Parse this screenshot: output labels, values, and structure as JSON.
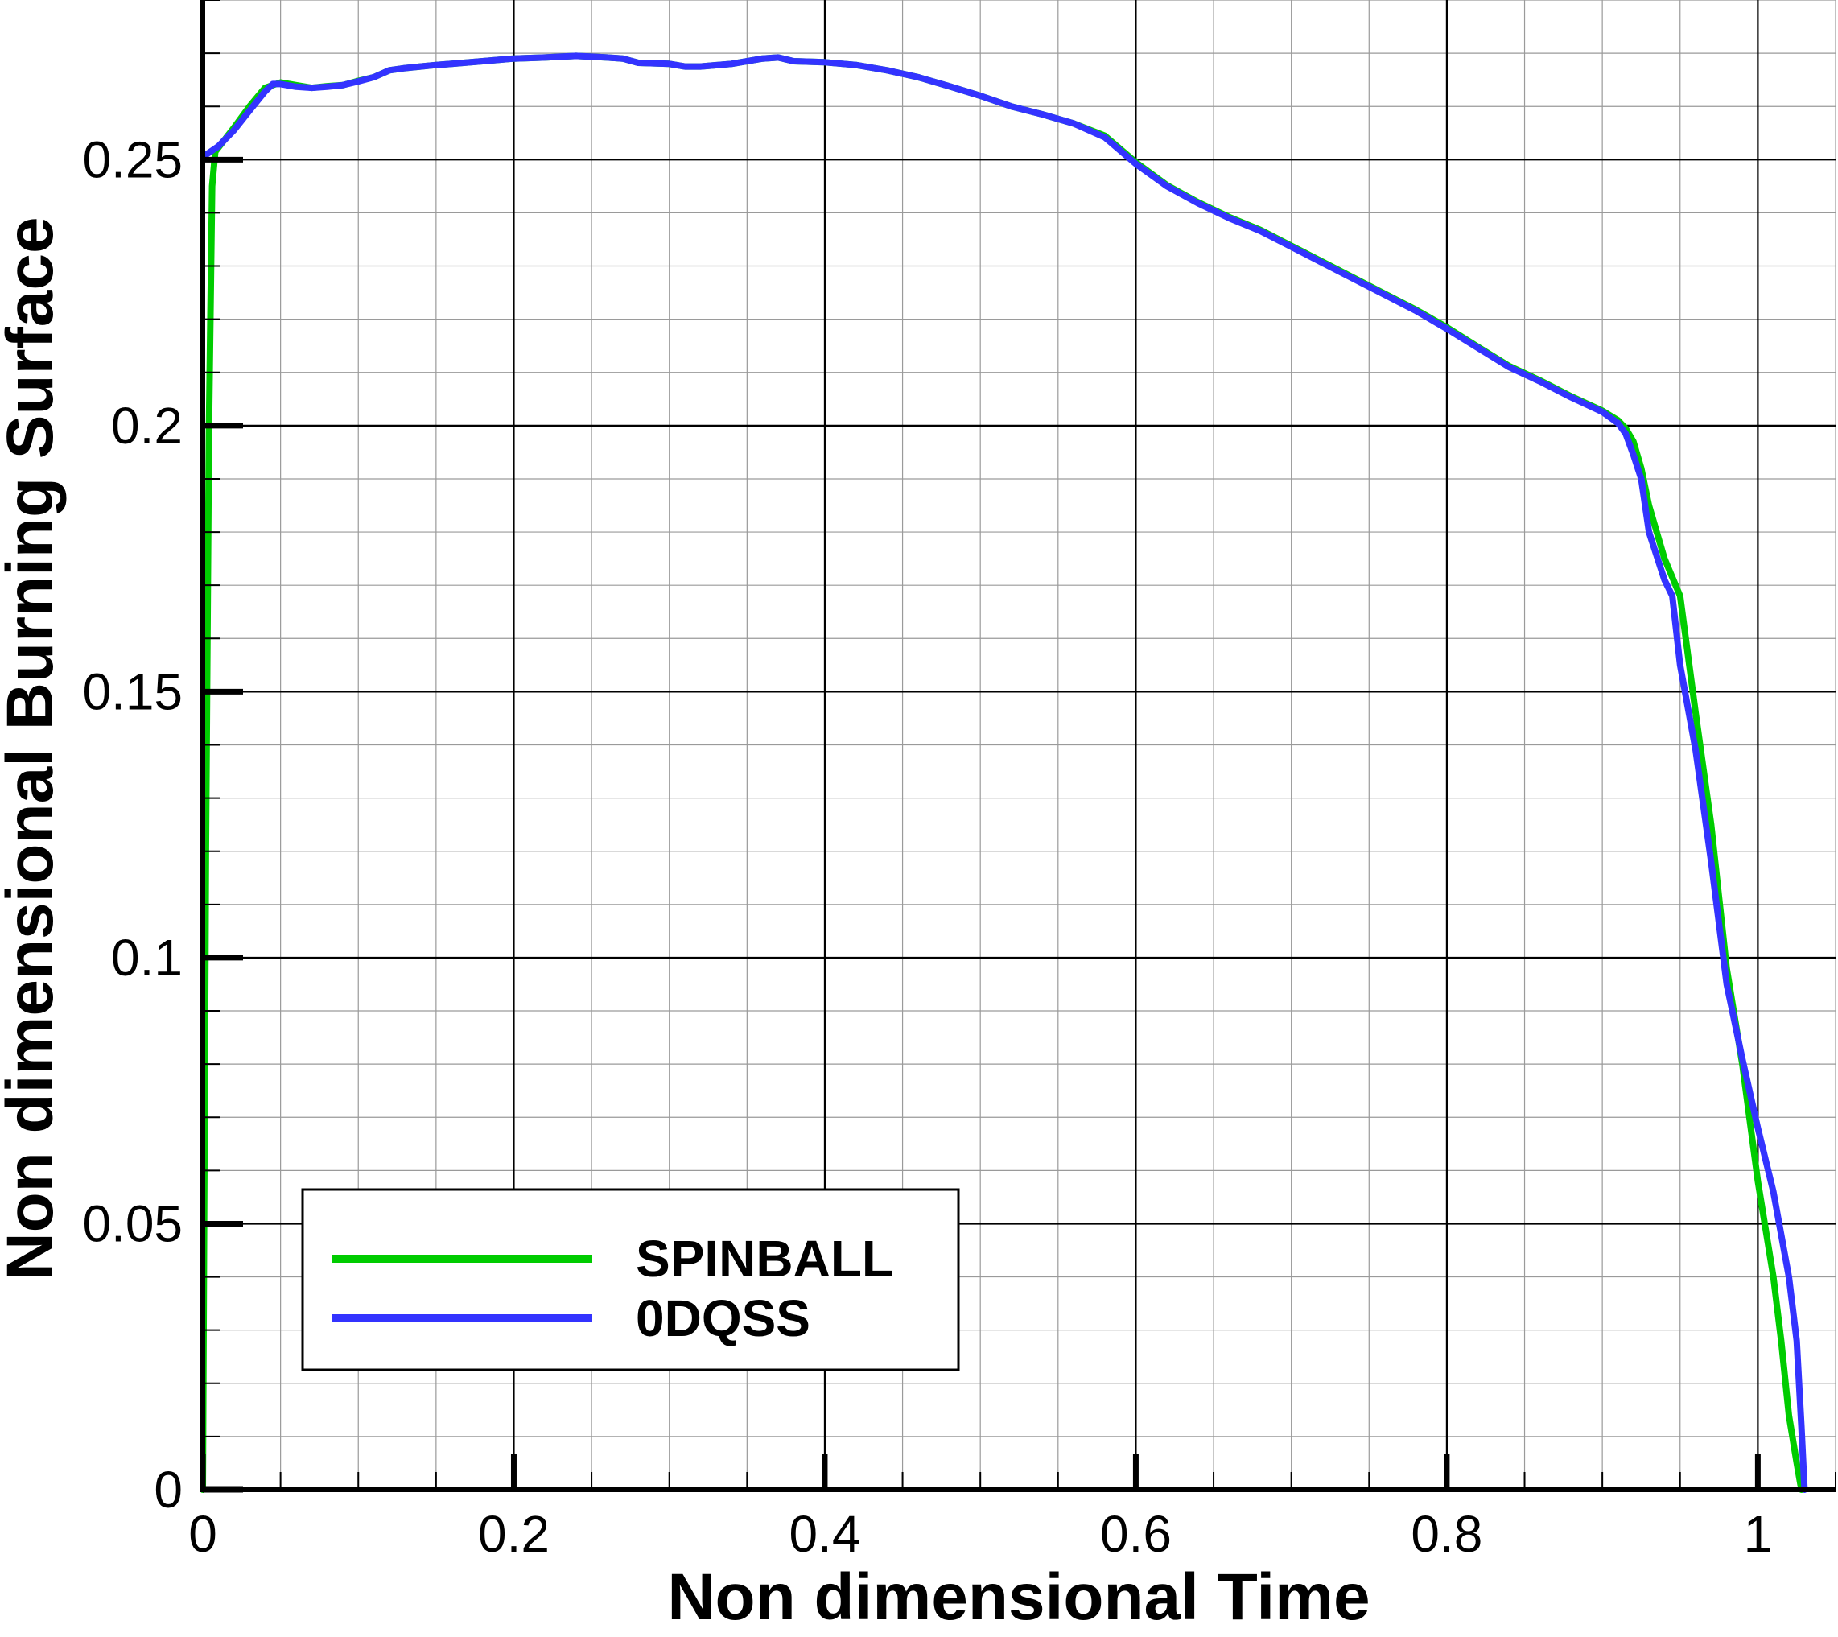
{
  "chart_data": {
    "type": "line",
    "title": "",
    "xlabel": "Non dimensional Time",
    "ylabel": "Non dimensional Burning Surface",
    "xlim": [
      0,
      1.05
    ],
    "ylim": [
      0,
      0.28
    ],
    "x_ticks": [
      {
        "value": 0,
        "label": "0"
      },
      {
        "value": 0.2,
        "label": "0.2"
      },
      {
        "value": 0.4,
        "label": "0.4"
      },
      {
        "value": 0.6,
        "label": "0.6"
      },
      {
        "value": 0.8,
        "label": "0.8"
      },
      {
        "value": 1,
        "label": "1"
      }
    ],
    "y_ticks": [
      {
        "value": 0,
        "label": "0"
      },
      {
        "value": 0.05,
        "label": "0.05"
      },
      {
        "value": 0.1,
        "label": "0.1"
      },
      {
        "value": 0.15,
        "label": "0.15"
      },
      {
        "value": 0.2,
        "label": "0.2"
      },
      {
        "value": 0.25,
        "label": "0.25"
      }
    ],
    "x_minor_step": 0.05,
    "y_minor_step": 0.01,
    "grid": true,
    "legend_position": "bottom-left",
    "series": [
      {
        "name": "SPINBALL",
        "color": "#00cc00",
        "points": [
          [
            0,
            0
          ],
          [
            0.002,
            0.12
          ],
          [
            0.004,
            0.2
          ],
          [
            0.006,
            0.245
          ],
          [
            0.008,
            0.2515
          ],
          [
            0.02,
            0.256
          ],
          [
            0.03,
            0.26
          ],
          [
            0.04,
            0.2635
          ],
          [
            0.05,
            0.2645
          ],
          [
            0.06,
            0.264
          ],
          [
            0.07,
            0.2635
          ],
          [
            0.08,
            0.2638
          ],
          [
            0.09,
            0.264
          ],
          [
            0.1,
            0.2648
          ],
          [
            0.11,
            0.2655
          ],
          [
            0.12,
            0.2668
          ],
          [
            0.13,
            0.2672
          ],
          [
            0.14,
            0.2675
          ],
          [
            0.15,
            0.2678
          ],
          [
            0.16,
            0.268
          ],
          [
            0.18,
            0.2685
          ],
          [
            0.2,
            0.269
          ],
          [
            0.22,
            0.2692
          ],
          [
            0.24,
            0.2695
          ],
          [
            0.26,
            0.2692
          ],
          [
            0.27,
            0.269
          ],
          [
            0.28,
            0.2682
          ],
          [
            0.3,
            0.268
          ],
          [
            0.31,
            0.2675
          ],
          [
            0.32,
            0.2675
          ],
          [
            0.34,
            0.268
          ],
          [
            0.36,
            0.269
          ],
          [
            0.37,
            0.2692
          ],
          [
            0.38,
            0.2685
          ],
          [
            0.4,
            0.2683
          ],
          [
            0.42,
            0.2678
          ],
          [
            0.44,
            0.2668
          ],
          [
            0.46,
            0.2655
          ],
          [
            0.48,
            0.2638
          ],
          [
            0.5,
            0.262
          ],
          [
            0.52,
            0.26
          ],
          [
            0.54,
            0.2585
          ],
          [
            0.56,
            0.2568
          ],
          [
            0.58,
            0.2545
          ],
          [
            0.6,
            0.2495
          ],
          [
            0.62,
            0.2452
          ],
          [
            0.64,
            0.242
          ],
          [
            0.66,
            0.2392
          ],
          [
            0.68,
            0.2368
          ],
          [
            0.7,
            0.2338
          ],
          [
            0.72,
            0.2308
          ],
          [
            0.74,
            0.2278
          ],
          [
            0.76,
            0.2248
          ],
          [
            0.78,
            0.2218
          ],
          [
            0.8,
            0.2185
          ],
          [
            0.82,
            0.2148
          ],
          [
            0.84,
            0.2112
          ],
          [
            0.86,
            0.2085
          ],
          [
            0.88,
            0.2055
          ],
          [
            0.9,
            0.2028
          ],
          [
            0.91,
            0.201
          ],
          [
            0.915,
            0.1995
          ],
          [
            0.92,
            0.197
          ],
          [
            0.925,
            0.192
          ],
          [
            0.93,
            0.185
          ],
          [
            0.94,
            0.175
          ],
          [
            0.95,
            0.168
          ],
          [
            0.96,
            0.146
          ],
          [
            0.97,
            0.125
          ],
          [
            0.98,
            0.098
          ],
          [
            0.99,
            0.08
          ],
          [
            1.0,
            0.058
          ],
          [
            1.01,
            0.04
          ],
          [
            1.015,
            0.028
          ],
          [
            1.02,
            0.014
          ],
          [
            1.025,
            0.005
          ],
          [
            1.028,
            0.0
          ]
        ]
      },
      {
        "name": "0DQSS",
        "color": "#3333ff",
        "points": [
          [
            0,
            0.2505
          ],
          [
            0.01,
            0.2525
          ],
          [
            0.02,
            0.2555
          ],
          [
            0.03,
            0.2592
          ],
          [
            0.04,
            0.2628
          ],
          [
            0.045,
            0.2642
          ],
          [
            0.05,
            0.2642
          ],
          [
            0.06,
            0.2637
          ],
          [
            0.07,
            0.2635
          ],
          [
            0.08,
            0.2637
          ],
          [
            0.09,
            0.264
          ],
          [
            0.1,
            0.2647
          ],
          [
            0.11,
            0.2655
          ],
          [
            0.12,
            0.2668
          ],
          [
            0.13,
            0.2672
          ],
          [
            0.14,
            0.2675
          ],
          [
            0.15,
            0.2678
          ],
          [
            0.16,
            0.268
          ],
          [
            0.18,
            0.2685
          ],
          [
            0.2,
            0.269
          ],
          [
            0.22,
            0.2692
          ],
          [
            0.24,
            0.2695
          ],
          [
            0.26,
            0.2692
          ],
          [
            0.27,
            0.269
          ],
          [
            0.28,
            0.2682
          ],
          [
            0.3,
            0.268
          ],
          [
            0.31,
            0.2675
          ],
          [
            0.32,
            0.2675
          ],
          [
            0.34,
            0.268
          ],
          [
            0.36,
            0.269
          ],
          [
            0.37,
            0.2692
          ],
          [
            0.38,
            0.2685
          ],
          [
            0.4,
            0.2683
          ],
          [
            0.42,
            0.2678
          ],
          [
            0.44,
            0.2668
          ],
          [
            0.46,
            0.2655
          ],
          [
            0.48,
            0.2638
          ],
          [
            0.5,
            0.262
          ],
          [
            0.52,
            0.26
          ],
          [
            0.54,
            0.2585
          ],
          [
            0.56,
            0.2568
          ],
          [
            0.58,
            0.2542
          ],
          [
            0.6,
            0.2492
          ],
          [
            0.62,
            0.245
          ],
          [
            0.64,
            0.2418
          ],
          [
            0.66,
            0.239
          ],
          [
            0.68,
            0.2366
          ],
          [
            0.7,
            0.2336
          ],
          [
            0.72,
            0.2306
          ],
          [
            0.74,
            0.2276
          ],
          [
            0.76,
            0.2246
          ],
          [
            0.78,
            0.2216
          ],
          [
            0.8,
            0.2182
          ],
          [
            0.82,
            0.2146
          ],
          [
            0.84,
            0.211
          ],
          [
            0.86,
            0.2083
          ],
          [
            0.88,
            0.2053
          ],
          [
            0.9,
            0.2026
          ],
          [
            0.91,
            0.2005
          ],
          [
            0.915,
            0.1985
          ],
          [
            0.92,
            0.1945
          ],
          [
            0.925,
            0.19
          ],
          [
            0.93,
            0.18
          ],
          [
            0.94,
            0.171
          ],
          [
            0.945,
            0.168
          ],
          [
            0.95,
            0.155
          ],
          [
            0.96,
            0.139
          ],
          [
            0.97,
            0.118
          ],
          [
            0.98,
            0.095
          ],
          [
            0.99,
            0.081
          ],
          [
            1.0,
            0.068
          ],
          [
            1.01,
            0.056
          ],
          [
            1.02,
            0.04
          ],
          [
            1.025,
            0.028
          ],
          [
            1.028,
            0.012
          ],
          [
            1.03,
            0.0
          ]
        ]
      }
    ]
  }
}
